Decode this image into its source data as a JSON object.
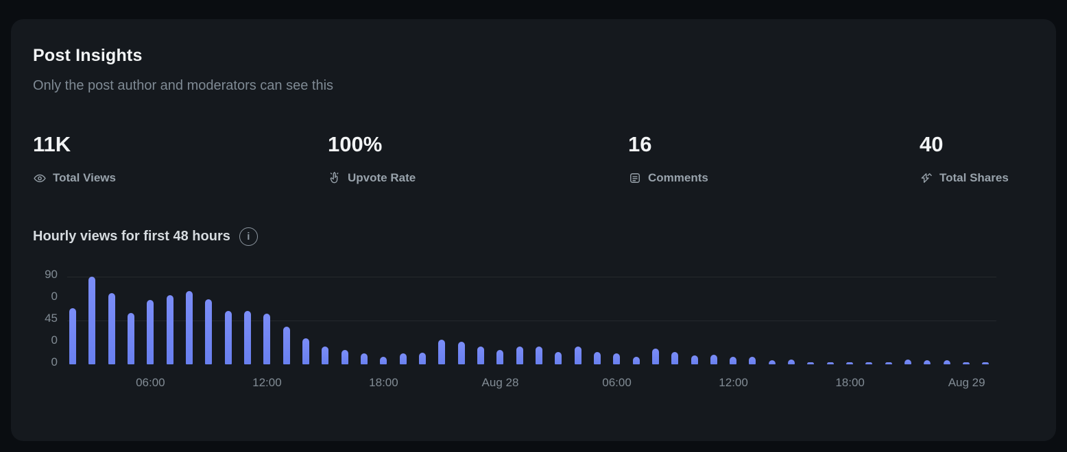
{
  "page": {
    "title": "Post Insights",
    "subtitle": "Only the post author and moderators can see this"
  },
  "stats": [
    {
      "value": "11K",
      "label": "Total Views",
      "icon": "eye-icon"
    },
    {
      "value": "100%",
      "label": "Upvote Rate",
      "icon": "upvote-hand-icon"
    },
    {
      "value": "16",
      "label": "Comments",
      "icon": "comment-icon"
    },
    {
      "value": "40",
      "label": "Total Shares",
      "icon": "share-arrow-icon"
    }
  ],
  "chart": {
    "title": "Hourly views for first 48 hours",
    "info_icon_glyph": "i"
  },
  "chart_data": {
    "type": "bar",
    "title": "Hourly views for first 48 hours",
    "unit": "views per hour",
    "x": [
      1,
      2,
      3,
      4,
      5,
      6,
      7,
      8,
      9,
      10,
      11,
      12,
      13,
      14,
      15,
      16,
      17,
      18,
      19,
      20,
      21,
      22,
      23,
      24,
      25,
      26,
      27,
      28,
      29,
      30,
      31,
      32,
      33,
      34,
      35,
      36,
      37,
      38,
      39,
      40,
      41,
      42,
      43,
      44,
      45,
      46,
      47,
      48
    ],
    "values": [
      58,
      90,
      73,
      53,
      66,
      71,
      75,
      67,
      55,
      55,
      52,
      39,
      27,
      18,
      15,
      11,
      8,
      11,
      12,
      25,
      23,
      18,
      15,
      18,
      18,
      13,
      18,
      13,
      11,
      8,
      16,
      13,
      9,
      10,
      8,
      8,
      4,
      5,
      2,
      2,
      2,
      2,
      2,
      5,
      4,
      4,
      2,
      2
    ],
    "ylim": [
      0,
      90
    ],
    "y_tick_labels": [
      "90",
      "0",
      "45",
      "0",
      "0"
    ],
    "gridline_values": [
      90,
      45
    ],
    "x_ticks": [
      {
        "bar_index": 4,
        "label": "06:00"
      },
      {
        "bar_index": 10,
        "label": "12:00"
      },
      {
        "bar_index": 16,
        "label": "18:00"
      },
      {
        "bar_index": 22,
        "label": "Aug 28"
      },
      {
        "bar_index": 28,
        "label": "06:00"
      },
      {
        "bar_index": 34,
        "label": "12:00"
      },
      {
        "bar_index": 40,
        "label": "18:00"
      },
      {
        "bar_index": 46,
        "label": "Aug 29"
      }
    ],
    "legend": null,
    "grid": "horizontal-faint",
    "bar_color": "#6f84f2"
  },
  "colors": {
    "page_background": "#0a0d11",
    "card_background": "#15191e",
    "bar": "#6f84f2",
    "text_primary": "#f2f4f5",
    "text_secondary": "#7f8a94",
    "axis_text": "#828c95"
  }
}
